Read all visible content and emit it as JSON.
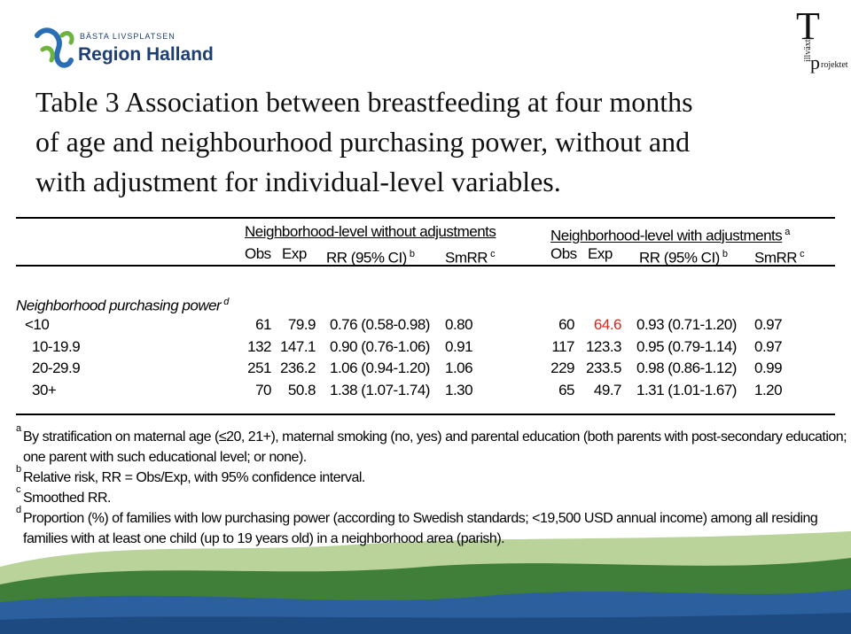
{
  "logo_left": {
    "tagline": "BÄSTA LIVSPLATSEN",
    "name": "Region Halland"
  },
  "logo_right": {
    "initial": "T",
    "vertical": "illväxt",
    "p": "p",
    "rest": "rojektet"
  },
  "title": [
    "Table 3 Association between breastfeeding at four months",
    "of age and neighbourhood purchasing power, without and",
    "with adjustment for individual-level variables."
  ],
  "table": {
    "groups": [
      {
        "text": "Neighborhood-level without adjustments",
        "sup": null
      },
      {
        "text": "Neighborhood-level with adjustments",
        "sup": "a"
      }
    ],
    "columns": [
      {
        "text": "Obs",
        "sup": null
      },
      {
        "text": "Exp",
        "sup": null
      },
      {
        "text": "RR (95% CI)",
        "sup": "b"
      },
      {
        "text": "SmRR",
        "sup": "c"
      },
      {
        "text": "Obs",
        "sup": null
      },
      {
        "text": "Exp",
        "sup": null
      },
      {
        "text": "RR (95% CI)",
        "sup": "b"
      },
      {
        "text": "SmRR",
        "sup": "c"
      }
    ],
    "section": {
      "text": "Neighborhood purchasing power",
      "sup": "d"
    },
    "rows": [
      {
        "label": "<10",
        "cells": [
          "61",
          "79.9",
          "0.76 (0.58-0.98)",
          "0.80",
          "60",
          "64.6",
          "0.93 (0.71-1.20)",
          "0.97"
        ]
      },
      {
        "label": "10-19.9",
        "cells": [
          "132",
          "147.1",
          "0.90 (0.76-1.06)",
          "0.91",
          "117",
          "123.3",
          "0.95 (0.79-1.14)",
          "0.97"
        ]
      },
      {
        "label": "20-29.9",
        "cells": [
          "251",
          "236.2",
          "1.06 (0.94-1.20)",
          "1.06",
          "229",
          "233.5",
          "0.98 (0.86-1.12)",
          "0.99"
        ]
      },
      {
        "label": "30+",
        "cells": [
          "70",
          "50.8",
          "1.38 (1.07-1.74)",
          "1.30",
          "65",
          "49.7",
          "1.31 (1.01-1.67)",
          "1.20"
        ]
      }
    ],
    "footnotes": [
      {
        "mark": "a",
        "lines": [
          "By stratification on maternal age (≤20, 21+), maternal smoking (no, yes) and parental education (both parents with post-secondary education;",
          "one parent with such educational level; or none)."
        ]
      },
      {
        "mark": "b",
        "lines": [
          "Relative risk, RR = Obs/Exp, with 95% confidence interval."
        ]
      },
      {
        "mark": "c",
        "lines": [
          "Smoothed RR."
        ]
      },
      {
        "mark": "d",
        "lines": [
          "Proportion (%) of families with low purchasing power (according to Swedish standards; <19,500 USD annual income) among all residing",
          "families with at least one child (up to 19 years old) in a neighborhood area (parish)."
        ]
      }
    ]
  }
}
